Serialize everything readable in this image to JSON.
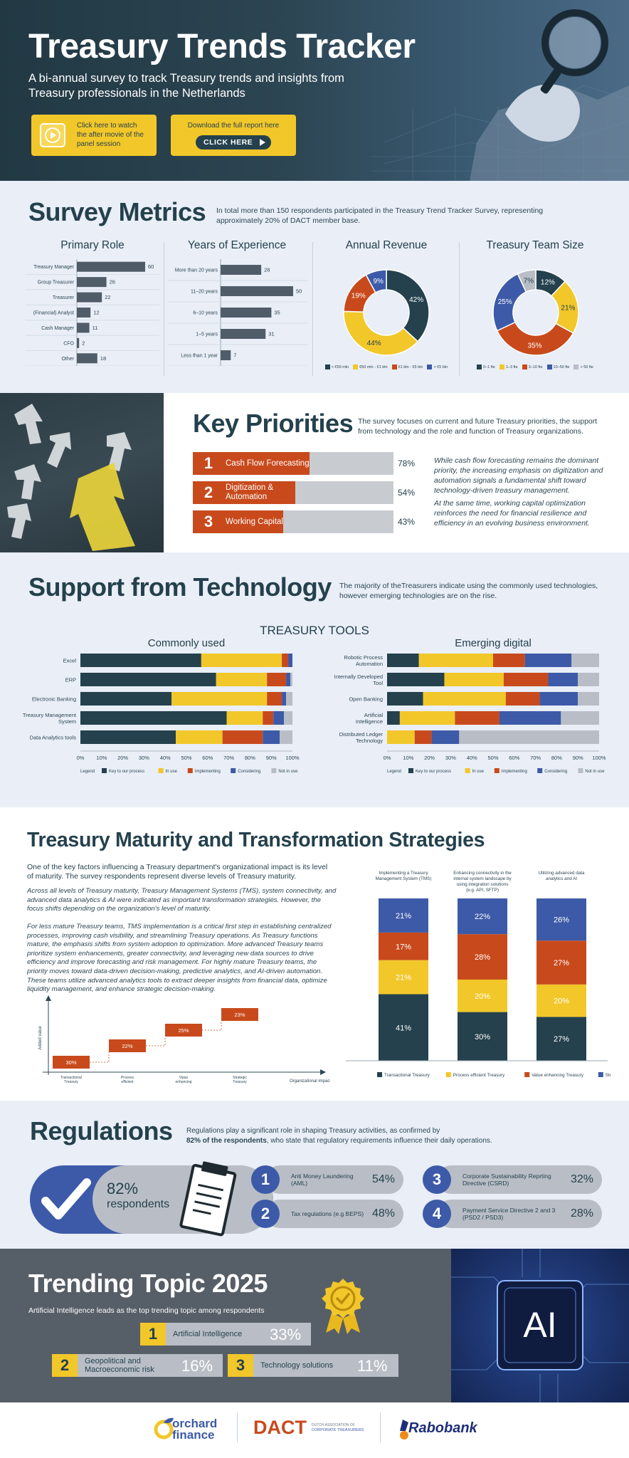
{
  "hero": {
    "title": "Treasury Trends Tracker",
    "subtitle": "A bi-annual survey to track Treasury trends and insights from Treasury professionals in the Netherlands",
    "video_button": "Click here to watch the after movie of the panel session",
    "report_label": "Download the full report here",
    "click_here": "CLICK HERE"
  },
  "metrics": {
    "title": "Survey Metrics",
    "description": "In total more than 150 respondents participated in the Treasury Trend Tracker Survey, representing approximately 20% of DACT member base.",
    "primary_role": {
      "title": "Primary Role",
      "items": [
        {
          "label": "Treasury Manager",
          "value": 60
        },
        {
          "label": "Group Treasurer",
          "value": 26
        },
        {
          "label": "Treasurer",
          "value": 22
        },
        {
          "label": "(Financial) Analyst",
          "value": 12
        },
        {
          "label": "Cash Manager",
          "value": 11
        },
        {
          "label": "CFO",
          "value": 2
        },
        {
          "label": "Other",
          "value": 18
        }
      ]
    },
    "experience": {
      "title": "Years of Experience",
      "items": [
        {
          "label": "More than 20 years",
          "value": 28
        },
        {
          "label": "11–20 years",
          "value": 50
        },
        {
          "label": "6–10 years",
          "value": 35
        },
        {
          "label": "1–5 years",
          "value": 31
        },
        {
          "label": "Less than 1 year",
          "value": 7
        }
      ]
    },
    "revenue": {
      "title": "Annual Revenue",
      "slices": [
        {
          "label": "< €50 mln",
          "value": 42,
          "text": "42%",
          "color": "#24414d"
        },
        {
          "label": "€50 mln - €1 bln",
          "value": 44,
          "text": "44%",
          "color": "#f2c72a"
        },
        {
          "label": "€1 bln - €5 bln",
          "value": 19,
          "text": "19%",
          "color": "#c84a1c"
        },
        {
          "label": "> €5 bln",
          "value": 9,
          "text": "9%",
          "color": "#3d5aa8"
        }
      ],
      "legend": [
        "< €50 mln",
        "€50 mln - €1 bln",
        "€1 bln - €5 bln",
        "> €5 bln"
      ]
    },
    "team": {
      "title": "Treasury Team Size",
      "slices": [
        {
          "label": "0–1 fte",
          "value": 12,
          "text": "12%",
          "color": "#24414d"
        },
        {
          "label": "1–3 fte",
          "value": 21,
          "text": "21%",
          "color": "#f2c72a"
        },
        {
          "label": "3–10 fte",
          "value": 35,
          "text": "35%",
          "color": "#c84a1c"
        },
        {
          "label": "10–50 fte",
          "value": 25,
          "text": "25%",
          "color": "#3d5aa8"
        },
        {
          "label": "> 50 fte",
          "value": 7,
          "text": "7%",
          "color": "#b9bec6"
        }
      ],
      "legend": [
        "0–1 fte",
        "1–3 fte",
        "3–10 fte",
        "10–50 fte",
        "> 50 fte"
      ]
    }
  },
  "priorities": {
    "title": "Key Priorities",
    "description": "The survey focuses on current and future Treasury priorities, the support from technology and the role and function of Treasury organizations.",
    "items": [
      {
        "num": "1",
        "label": "Cash Flow Forecasting",
        "pct": "78%",
        "value": 78
      },
      {
        "num": "2",
        "label": "Digitization & Automation",
        "pct": "54%",
        "value": 54
      },
      {
        "num": "3",
        "label": "Working Capital",
        "pct": "43%",
        "value": 43
      }
    ],
    "note1": "While cash flow forecasting remains the dominant priority, the increasing emphasis on digitization and automation signals a fundamental shift toward technology-driven treasury management.",
    "note2": "At the same time, working capital optimization reinforces the need for financial resilience and efficiency in an evolving business environment."
  },
  "technology": {
    "title": "Support from Technology",
    "description": "The majority of theTreasurers indicate using the commonly used technologies, however emerging technologies are on the rise.",
    "tools_title": "TREASURY TOOLS",
    "legend_label": "Legend",
    "legend": [
      "Key to our process",
      "In use",
      "Implementing",
      "Considering",
      "Not in use"
    ],
    "colors": [
      "#24414d",
      "#f2c72a",
      "#c84a1c",
      "#3d5aa8",
      "#b9bec6"
    ],
    "ticks": [
      "0%",
      "10%",
      "20%",
      "30%",
      "40%",
      "50%",
      "60%",
      "70%",
      "80%",
      "90%",
      "100%"
    ]
  },
  "chart_data": [
    {
      "type": "bar",
      "title": "Commonly used",
      "orientation": "horizontal-stacked",
      "categories": [
        "Excel",
        "ERP",
        "Electronic Banking",
        "Treasury Management System",
        "Data Analytics tools"
      ],
      "series": [
        {
          "name": "Key to our process",
          "values": [
            57,
            64,
            43,
            69,
            45
          ]
        },
        {
          "name": "In use",
          "values": [
            38,
            24,
            45,
            17,
            22
          ]
        },
        {
          "name": "Implementing",
          "values": [
            3,
            9,
            7,
            5,
            19
          ]
        },
        {
          "name": "Considering",
          "values": [
            2,
            2,
            2,
            5,
            8
          ]
        },
        {
          "name": "Not in use",
          "values": [
            0,
            1,
            3,
            4,
            6
          ]
        }
      ],
      "xlim": [
        0,
        100
      ]
    },
    {
      "type": "bar",
      "title": "Emerging digital",
      "orientation": "horizontal-stacked",
      "categories": [
        "Robotic Process Automation",
        "Internally Developed Tool",
        "Open Banking",
        "Artificial Intelligence",
        "Distributed Ledger Technology"
      ],
      "series": [
        {
          "name": "Key to our process",
          "values": [
            15,
            27,
            17,
            6,
            0
          ]
        },
        {
          "name": "In use",
          "values": [
            35,
            28,
            39,
            26,
            13
          ]
        },
        {
          "name": "Implementing",
          "values": [
            15,
            21,
            16,
            21,
            8
          ]
        },
        {
          "name": "Considering",
          "values": [
            22,
            14,
            18,
            29,
            13
          ]
        },
        {
          "name": "Not in use",
          "values": [
            13,
            10,
            10,
            18,
            66
          ]
        }
      ],
      "xlim": [
        0,
        100
      ]
    },
    {
      "type": "bar",
      "orientation": "vertical-stacked",
      "categories": [
        "Implementing a Treasury Management System (TMS)",
        "Enhancing connectivity in the internal system landscape by using integration solutions (e.g. API, SFTP)",
        "Utilizing advanced data analytics and AI"
      ],
      "series": [
        {
          "name": "Transactional Treasury",
          "values": [
            41,
            30,
            27
          ]
        },
        {
          "name": "Process efficient Treasury",
          "values": [
            21,
            20,
            20
          ]
        },
        {
          "name": "Value enhancing Treasury",
          "values": [
            17,
            28,
            27
          ]
        },
        {
          "name": "Strategic Treasury",
          "values": [
            21,
            22,
            26
          ]
        }
      ],
      "ylim": [
        0,
        100
      ]
    },
    {
      "type": "bar",
      "orientation": "staircase",
      "categories": [
        "Transactional Treasury",
        "Process efficient Treasury",
        "Value enhancing Treasury",
        "Strategic Treasury"
      ],
      "values": [
        30,
        22,
        25,
        23
      ],
      "xlabel": "Organizational impact",
      "ylabel": "Added value"
    }
  ],
  "maturity": {
    "title": "Treasury Maturity and Transformation Strategies",
    "intro": "One of the key factors influencing a Treasury department's organizational impact is its level of maturity. The survey respondents represent diverse levels of Treasury maturity.",
    "para1": "Across all levels of Treasury maturity, Treasury Management Systems (TMS), system connectivity, and advanced data analytics & AI were indicated as important transformation strategies. However, the focus shifts depending on the organization's level of maturity.",
    "para2": "For less mature Treasury teams, TMS implementation is a critical first step in establishing centralized processes, improving cash visibility, and streamlining Treasury operations. As Treasury functions mature, the emphasis shifts from system adoption to optimization. More advanced Treasury teams prioritize system enhancements, greater connectivity, and leveraging new data sources to drive efficiency and improve forecasting and risk management. For highly mature Treasury teams, the priority moves toward data-driven decision-making, predictive analytics, and AI-driven automation. These teams utilize advanced analytics tools to extract deeper insights from financial data, optimize liquidity management, and enhance strategic decision-making.",
    "stair_labels": [
      "30%",
      "22%",
      "25%",
      "23%"
    ],
    "stair_cats": [
      "Transactional Treasury",
      "Process efficient Treasury",
      "Value enhancing Treasury",
      "Strategic Treasury"
    ],
    "axis_y": "Added value",
    "axis_x": "Organizational impact",
    "col_titles": [
      "Implementing a Treasury Management System (TMS)",
      "Enhancing connectivity in the internal system landscape by using integration solutions (e.g. API, SFTP)",
      "Utilizing advanced data analytics and AI"
    ],
    "col_labels": [
      [
        "41%",
        "21%",
        "17%",
        "21%"
      ],
      [
        "30%",
        "20%",
        "28%",
        "22%"
      ],
      [
        "27%",
        "20%",
        "27%",
        "26%"
      ]
    ],
    "legend": [
      "Transactional Treasury",
      "Process efficient Treasury",
      "Value enhancing Treasury",
      "Strategic Treasury"
    ]
  },
  "regulations": {
    "title": "Regulations",
    "desc1": "Regulations play a significant role in shaping Treasury activities, as confirmed by",
    "desc2_bold": "82% of the respondents",
    "desc2": ", who state that regulatory requirements influence their daily operations.",
    "big_pct": "82%",
    "big_label": "respondents",
    "items": [
      {
        "num": "1",
        "label": "Anti Money Laundering (AML)",
        "pct": "54%"
      },
      {
        "num": "2",
        "label": "Tax regulations (e.g BEPS)",
        "pct": "48%"
      },
      {
        "num": "3",
        "label": "Corporate Sustainability Reprting Directive (CSRD)",
        "pct": "32%"
      },
      {
        "num": "4",
        "label": "Payment Service Directive 2 and 3 (PSD2 / PSD3)",
        "pct": "28%"
      }
    ]
  },
  "trending": {
    "title": "Trending Topic 2025",
    "subtitle": "Artificial Intelligence leads as the top trending topic among respondents",
    "items": [
      {
        "num": "1",
        "label": "Artificial Intelligence",
        "pct": "33%"
      },
      {
        "num": "2",
        "label": "Geopolitical and Macroeconomic risk",
        "pct": "16%"
      },
      {
        "num": "3",
        "label": "Technology solutions",
        "pct": "11%"
      }
    ],
    "ai_label": "AI"
  },
  "footer": {
    "orchard1": "orchard",
    "orchard2": "finance",
    "dact": "DACT",
    "dact_sub1": "DUTCH ASSOCIATION OF",
    "dact_sub2": "CORPORATE TREASURERS",
    "rabobank": "Rabobank"
  }
}
